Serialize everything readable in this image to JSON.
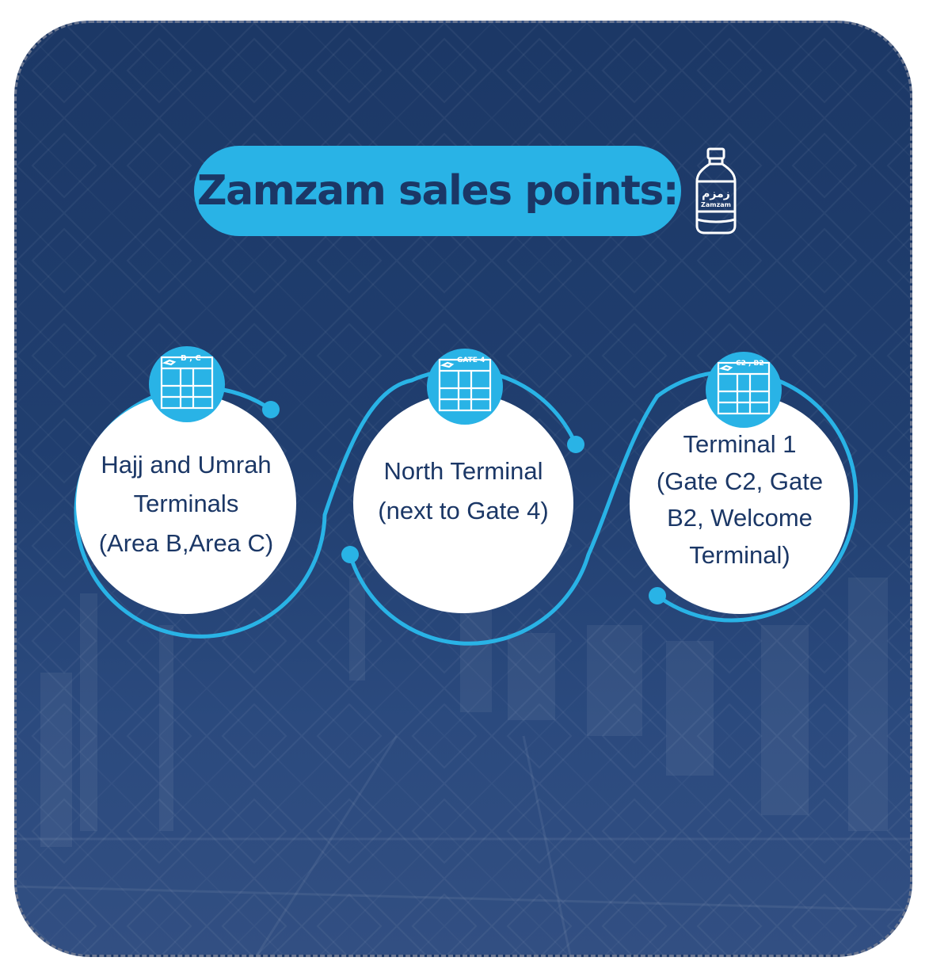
{
  "title": "Zamzam sales points:",
  "bottle_icon": {
    "name": "zamzam-bottle-icon",
    "arabic_label": "زمزم",
    "latin_label": "Zamzam"
  },
  "colors": {
    "background": "#1f3b6b",
    "accent": "#29b3e6",
    "text_dark": "#1b3766",
    "circle_fill": "#ffffff"
  },
  "points": [
    {
      "lines": [
        "Hajj and Umrah",
        "Terminals",
        "(Area B,Area C)"
      ],
      "badge_label": "B , C",
      "icon": "terminal-board-icon"
    },
    {
      "lines": [
        "North Terminal",
        "(next to Gate 4)"
      ],
      "badge_label": "GATE 4",
      "icon": "terminal-board-icon"
    },
    {
      "lines": [
        "Terminal 1",
        "(Gate C2, Gate",
        "B2, Welcome",
        "Terminal)"
      ],
      "badge_label": "C2 , B2",
      "icon": "terminal-board-icon"
    }
  ]
}
